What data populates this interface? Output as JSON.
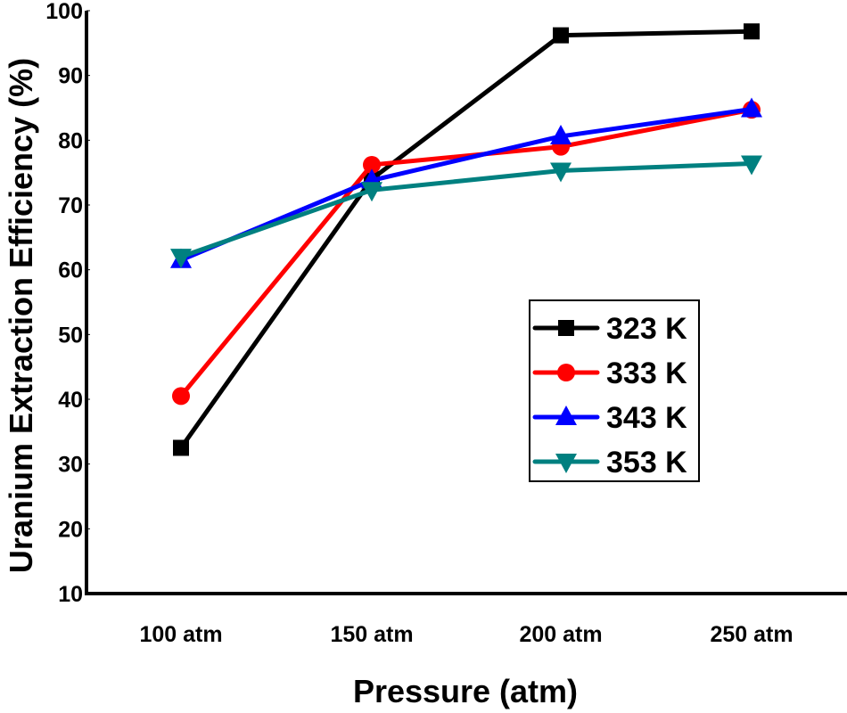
{
  "chart_data": {
    "type": "line",
    "title": "",
    "xlabel": "Pressure (atm)",
    "ylabel": "Uranium Extraction Efficiency (%)",
    "categories": [
      "100 atm",
      "150 atm",
      "200 atm",
      "250 atm"
    ],
    "ylim": [
      10,
      100
    ],
    "yticks": [
      10,
      20,
      30,
      40,
      50,
      60,
      70,
      80,
      90,
      100
    ],
    "grid": false,
    "legend_position": "center-right",
    "series": [
      {
        "name": "323 K",
        "color": "#000000",
        "marker": "square",
        "values": [
          32.5,
          74.0,
          96.2,
          96.8
        ]
      },
      {
        "name": "333 K",
        "color": "#ff0000",
        "marker": "circle",
        "values": [
          40.5,
          76.2,
          79.0,
          84.7
        ]
      },
      {
        "name": "343 K",
        "color": "#0000ff",
        "marker": "triangle-up",
        "values": [
          61.5,
          73.8,
          80.6,
          84.8
        ]
      },
      {
        "name": "353 K",
        "color": "#008080",
        "marker": "triangle-down",
        "values": [
          62.0,
          72.3,
          75.3,
          76.4
        ]
      }
    ]
  }
}
